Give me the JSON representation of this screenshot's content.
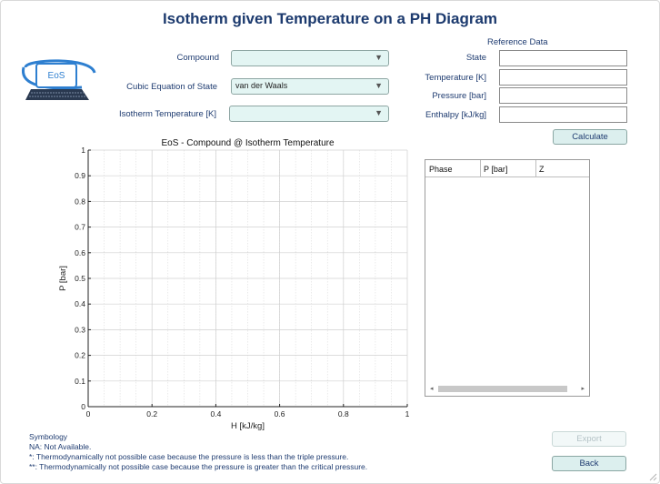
{
  "title": "Isotherm given Temperature on a PH Diagram",
  "logo": {
    "text": "EoS",
    "icon": "laptop-eos-logo-icon"
  },
  "form": {
    "compound_label": "Compound",
    "compound_value": "",
    "cubic_eos_label": "Cubic Equation of State",
    "cubic_eos_value": "van der Waals",
    "isotherm_temp_label": "Isotherm Temperature [K]",
    "isotherm_temp_value": ""
  },
  "reference": {
    "heading": "Reference Data",
    "state_label": "State",
    "state_value": "",
    "temperature_label": "Temperature [K]",
    "temperature_value": "",
    "pressure_label": "Pressure [bar]",
    "pressure_value": "",
    "enthalpy_label": "Enthalpy [kJ/kg]",
    "enthalpy_value": ""
  },
  "buttons": {
    "calculate": "Calculate",
    "export": "Export",
    "back": "Back"
  },
  "table": {
    "columns": [
      "Phase",
      "P [bar]",
      "Z"
    ],
    "rows": []
  },
  "chart_data": {
    "type": "line",
    "title": "EoS - Compound @ Isotherm Temperature",
    "xlabel": "H [kJ/kg]",
    "ylabel": "P [bar]",
    "xlim": [
      0,
      1
    ],
    "ylim": [
      0,
      1
    ],
    "xticks": [
      "0",
      "0.2",
      "0.4",
      "0.6",
      "0.8",
      "1"
    ],
    "yticks": [
      "0",
      "0.1",
      "0.2",
      "0.3",
      "0.4",
      "0.5",
      "0.6",
      "0.7",
      "0.8",
      "0.9",
      "1"
    ],
    "grid": true,
    "minor_grid": true,
    "series": []
  },
  "symbology": {
    "heading": "Symbology",
    "na": "NA: Not Available.",
    "star1": "*: Thermodynamically not possible case because the pressure is less than the triple pressure.",
    "star2": "**: Thermodynamically not possible case because the pressure is greater than the critical pressure."
  }
}
